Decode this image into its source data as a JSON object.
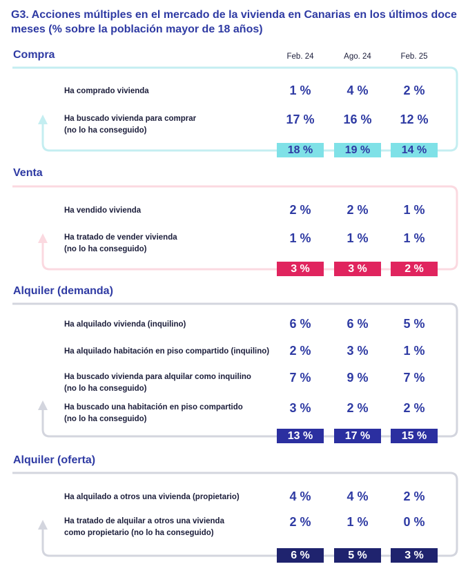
{
  "title": [
    "G3. Acciones múltiples en el mercado de la vivienda en Canarias en los últimos doce",
    "meses (% sobre la población mayor de 18 años)"
  ],
  "columns": [
    "Feb. 24",
    "Ago. 24",
    "Feb. 25"
  ],
  "sections": [
    {
      "title": "Compra",
      "rows": [
        {
          "label": [
            "Ha comprado vivienda"
          ],
          "values": [
            "1 %",
            "4 %",
            "2 %"
          ]
        },
        {
          "label": [
            "Ha buscado vivienda para comprar",
            "(no lo ha conseguido)"
          ],
          "values": [
            "17 %",
            "16 %",
            "12 %"
          ]
        }
      ],
      "totals": [
        "18 %",
        "19 %",
        "14 %"
      ]
    },
    {
      "title": "Venta",
      "rows": [
        {
          "label": [
            "Ha vendido vivienda"
          ],
          "values": [
            "2 %",
            "2 %",
            "1 %"
          ]
        },
        {
          "label": [
            "Ha tratado de vender vivienda",
            "(no lo ha conseguido)"
          ],
          "values": [
            "1 %",
            "1 %",
            "1 %"
          ]
        }
      ],
      "totals": [
        "3 %",
        "3 %",
        "2 %"
      ]
    },
    {
      "title": "Alquiler (demanda)",
      "rows": [
        {
          "label": [
            "Ha alquilado vivienda (inquilino)"
          ],
          "values": [
            "6 %",
            "6 %",
            "5 %"
          ]
        },
        {
          "label": [
            "Ha alquilado habitación en piso compartido (inquilino)"
          ],
          "values": [
            "2 %",
            "3 %",
            "1 %"
          ]
        },
        {
          "label": [
            "Ha buscado vivienda para alquilar como inquilino",
            "(no lo ha conseguido)"
          ],
          "values": [
            "7 %",
            "9 %",
            "7 %"
          ]
        },
        {
          "label": [
            "Ha buscado una habitación en piso compartido",
            "(no lo ha conseguido)"
          ],
          "values": [
            "3 %",
            "2 %",
            "2 %"
          ]
        }
      ],
      "totals": [
        "13 %",
        "17 %",
        "15 %"
      ]
    },
    {
      "title": "Alquiler (oferta)",
      "rows": [
        {
          "label": [
            "Ha alquilado a otros una vivienda (propietario)"
          ],
          "values": [
            "4 %",
            "4 %",
            "2 %"
          ]
        },
        {
          "label": [
            "Ha tratado de alquilar a otros una vivienda",
            "como propietario (no lo ha conseguido)"
          ],
          "values": [
            "2 %",
            "1 %",
            "0 %"
          ]
        }
      ],
      "totals": [
        "6 %",
        "5 %",
        "3 %"
      ]
    }
  ]
}
